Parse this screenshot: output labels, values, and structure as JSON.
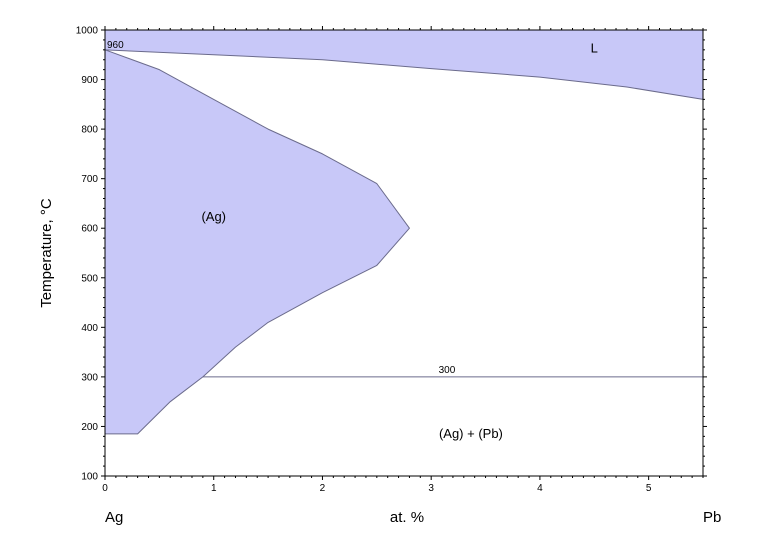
{
  "chart_data": {
    "type": "area",
    "ylabel": "Temperature, °C",
    "xlabel": "at. %",
    "x_left_label": "Ag",
    "x_right_label": "Pb",
    "xlim": [
      0,
      5.5
    ],
    "ylim": [
      100,
      1000
    ],
    "x_ticks": [
      0,
      1,
      2,
      3,
      4,
      5
    ],
    "y_ticks": [
      100,
      200,
      300,
      400,
      500,
      600,
      700,
      800,
      900,
      1000
    ],
    "fill_color": "#c8c8f8",
    "line_color": "#6b6b8c",
    "regions": [
      {
        "name": "L",
        "label": "L",
        "label_pos": [
          4.5,
          955
        ],
        "boundary": [
          [
            0,
            960
          ],
          [
            1,
            950
          ],
          [
            2,
            940
          ],
          [
            3,
            922
          ],
          [
            4,
            905
          ],
          [
            4.8,
            885
          ],
          [
            5.5,
            860
          ]
        ]
      },
      {
        "name": "(Ag)",
        "label": "(Ag)",
        "label_pos": [
          1.0,
          615
        ],
        "boundary": [
          [
            0,
            960
          ],
          [
            0.5,
            920
          ],
          [
            1,
            860
          ],
          [
            1.5,
            800
          ],
          [
            2,
            750
          ],
          [
            2.5,
            690
          ],
          [
            2.8,
            600
          ],
          [
            2.5,
            525
          ],
          [
            2,
            470
          ],
          [
            1.5,
            410
          ],
          [
            1.2,
            360
          ],
          [
            0.9,
            300
          ],
          [
            0.6,
            250
          ],
          [
            0.3,
            185
          ],
          [
            0,
            185
          ]
        ]
      }
    ],
    "eutectic_line": {
      "y": 300,
      "x_start": 0.9,
      "x_end": 5.5,
      "label": "300"
    },
    "annotations": [
      {
        "text": "960",
        "x": 0.0,
        "y": 960
      },
      {
        "text": "(Ag) + (Pb)",
        "x": 3.2,
        "y": 185
      }
    ]
  }
}
